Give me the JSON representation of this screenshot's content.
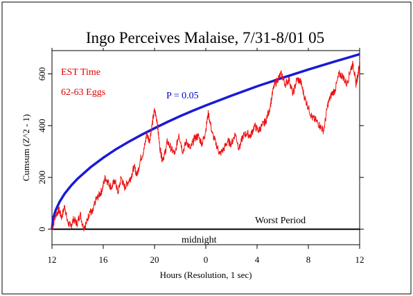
{
  "chart_data": {
    "type": "line",
    "title": "Ingo Perceives Malaise, 7/31-8/01 05",
    "xlabel": "Hours (Resolution, 1 sec)",
    "ylabel": "Cumsum (Z^2 - 1)",
    "x_ticks": [
      "12",
      "16",
      "20",
      "0",
      "4",
      "8",
      "12"
    ],
    "x_tick_hours": [
      12,
      16,
      20,
      24,
      28,
      32,
      36
    ],
    "xlim": [
      12,
      36
    ],
    "y_ticks": [
      "0",
      "200",
      "400",
      "600"
    ],
    "y_tick_values": [
      0,
      200,
      400,
      600
    ],
    "ylim": [
      -60,
      690
    ],
    "grid": false,
    "annotations": {
      "est_time": "EST Time",
      "eggs": "62-63 Eggs",
      "p_label": "P = 0.05",
      "worst_period": "Worst Period",
      "midnight": "midnight"
    },
    "colors": {
      "cumsum": "#ee1111",
      "p_envelope": "#1a1ad6",
      "annotation_red": "#dd0000",
      "annotation_blue": "#0000cc",
      "axis": "#000000"
    },
    "series": [
      {
        "role": "cumsum",
        "x": [
          12.0,
          12.3,
          12.55,
          12.75,
          13.0,
          13.2,
          13.45,
          13.7,
          13.95,
          14.2,
          14.45,
          14.7,
          14.95,
          15.15,
          15.4,
          15.65,
          15.9,
          16.15,
          16.4,
          16.65,
          16.9,
          17.15,
          17.4,
          17.65,
          17.9,
          18.15,
          18.4,
          18.65,
          18.9,
          19.15,
          19.4,
          19.6,
          19.8,
          20.0,
          20.2,
          20.4,
          20.6,
          20.8,
          21.0,
          21.3,
          21.6,
          21.9,
          22.2,
          22.5,
          22.8,
          23.1,
          23.4,
          23.7,
          23.95,
          24.2,
          24.5,
          24.8,
          25.1,
          25.4,
          25.7,
          26.0,
          26.3,
          26.6,
          26.9,
          27.2,
          27.5,
          27.8,
          28.1,
          28.4,
          28.7,
          29.0,
          29.3,
          29.6,
          29.9,
          30.2,
          30.5,
          30.8,
          31.1,
          31.4,
          31.7,
          32.0,
          32.3,
          32.6,
          32.9,
          33.2,
          33.5,
          33.8,
          34.1,
          34.4,
          34.7,
          35.0,
          35.3,
          35.5,
          35.7,
          35.85,
          36.0
        ],
        "y": [
          0,
          55,
          75,
          45,
          90,
          30,
          10,
          40,
          20,
          60,
          5,
          25,
          70,
          60,
          110,
          130,
          150,
          200,
          180,
          160,
          190,
          140,
          200,
          160,
          180,
          200,
          240,
          210,
          270,
          300,
          370,
          340,
          400,
          460,
          420,
          320,
          270,
          290,
          340,
          310,
          290,
          370,
          300,
          340,
          310,
          350,
          360,
          330,
          370,
          450,
          370,
          330,
          290,
          310,
          340,
          330,
          370,
          310,
          360,
          370,
          360,
          400,
          380,
          400,
          420,
          470,
          550,
          580,
          600,
          560,
          580,
          520,
          580,
          570,
          510,
          470,
          430,
          420,
          400,
          380,
          480,
          520,
          540,
          600,
          590,
          560,
          620,
          640,
          560,
          590,
          650
        ]
      },
      {
        "role": "p_envelope",
        "name": "P = 0.05",
        "x": [
          12.0,
          12.1,
          12.3,
          12.6,
          13.0,
          13.5,
          14.0,
          15.0,
          16.0,
          17.0,
          18.0,
          19.0,
          20.0,
          21.0,
          22.0,
          23.0,
          24.0,
          26.0,
          28.0,
          30.0,
          32.0,
          34.0,
          36.0
        ],
        "y": [
          0,
          43,
          75,
          106,
          138,
          169,
          195,
          239,
          276,
          309,
          338,
          365,
          390,
          414,
          437,
          458,
          478,
          516,
          552,
          585,
          617,
          647,
          676
        ]
      }
    ]
  }
}
